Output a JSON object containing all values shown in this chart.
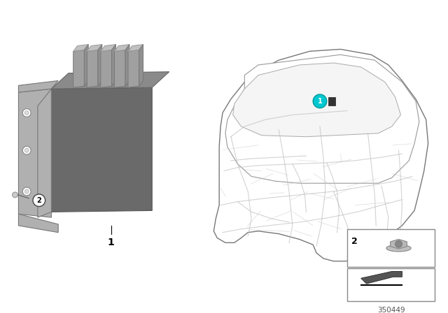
{
  "bg_color": "#ffffff",
  "diagram_number": "350449",
  "part1_label": "1",
  "part2_label": "2",
  "teal_color": "#00c8d0",
  "body_dark": "#6a6a6a",
  "body_mid": "#8a8a8a",
  "body_light": "#b0b0b0",
  "body_lighter": "#c8c8c8",
  "conn_color": "#a0a0a0",
  "conn_light": "#c0c0c0",
  "car_outline": "#777777",
  "car_wiring": "#bbbbbb",
  "bracket_dark": "#888888",
  "screw_color": "#aaaaaa"
}
